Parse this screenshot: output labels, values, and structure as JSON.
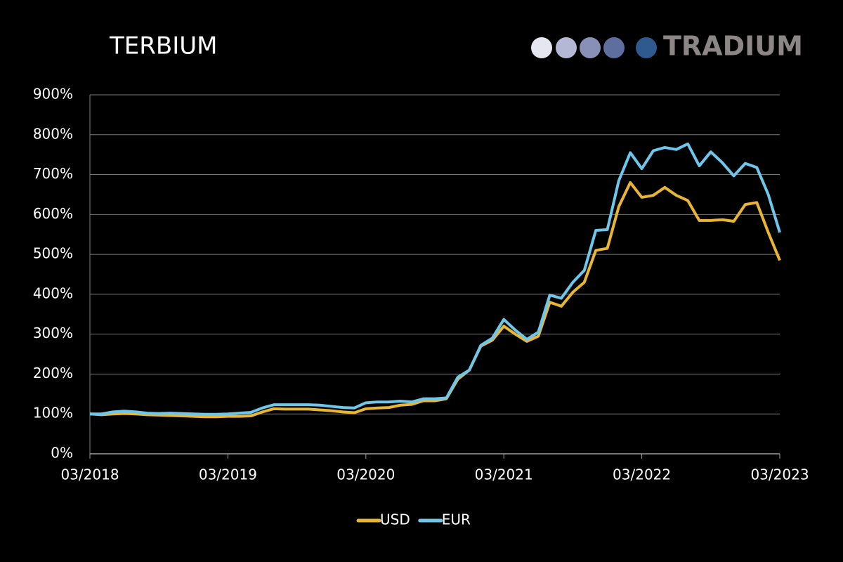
{
  "brand": "TRADIUM",
  "chart_data": {
    "type": "line",
    "title": "TERBIUM",
    "categories": [
      "03/2018",
      null,
      null,
      null,
      null,
      null,
      null,
      null,
      null,
      null,
      null,
      null,
      "03/2019",
      null,
      null,
      null,
      null,
      null,
      null,
      null,
      null,
      null,
      null,
      null,
      "03/2020",
      null,
      null,
      null,
      null,
      null,
      null,
      null,
      null,
      null,
      null,
      null,
      "03/2021",
      null,
      null,
      null,
      null,
      null,
      null,
      null,
      null,
      null,
      null,
      null,
      "03/2022",
      null,
      null,
      null,
      null,
      null,
      null,
      null,
      null,
      null,
      null,
      null,
      "03/2023"
    ],
    "series": [
      {
        "name": "USD",
        "color": "#e8b633",
        "values": [
          100,
          98,
          100,
          101,
          100,
          98,
          97,
          96,
          95,
          94,
          93,
          93,
          94,
          94,
          95,
          105,
          113,
          112,
          112,
          112,
          110,
          108,
          105,
          103,
          113,
          115,
          116,
          122,
          124,
          133,
          133,
          138,
          187,
          210,
          270,
          285,
          320,
          300,
          282,
          295,
          380,
          370,
          405,
          430,
          510,
          515,
          620,
          680,
          643,
          648,
          668,
          648,
          635,
          585,
          585,
          587,
          583,
          625,
          630,
          555,
          485
        ]
      },
      {
        "name": "EUR",
        "color": "#6ec6ea",
        "values": [
          100,
          100,
          105,
          107,
          105,
          102,
          101,
          102,
          101,
          100,
          99,
          99,
          100,
          102,
          104,
          115,
          123,
          123,
          123,
          123,
          122,
          119,
          116,
          115,
          128,
          130,
          130,
          132,
          130,
          138,
          138,
          140,
          192,
          210,
          272,
          290,
          337,
          310,
          287,
          305,
          398,
          390,
          430,
          460,
          560,
          562,
          685,
          755,
          715,
          760,
          768,
          763,
          777,
          722,
          757,
          730,
          697,
          728,
          718,
          650,
          555
        ]
      }
    ],
    "ylim": [
      0,
      900
    ],
    "yticks": [
      {
        "value": 0,
        "label": "0%"
      },
      {
        "value": 100,
        "label": "100%"
      },
      {
        "value": 200,
        "label": "200%"
      },
      {
        "value": 300,
        "label": "300%"
      },
      {
        "value": 400,
        "label": "400%"
      },
      {
        "value": 500,
        "label": "500%"
      },
      {
        "value": 600,
        "label": "600%"
      },
      {
        "value": 700,
        "label": "700%"
      },
      {
        "value": 800,
        "label": "800%"
      },
      {
        "value": 900,
        "label": "900%"
      }
    ],
    "grid": true
  }
}
